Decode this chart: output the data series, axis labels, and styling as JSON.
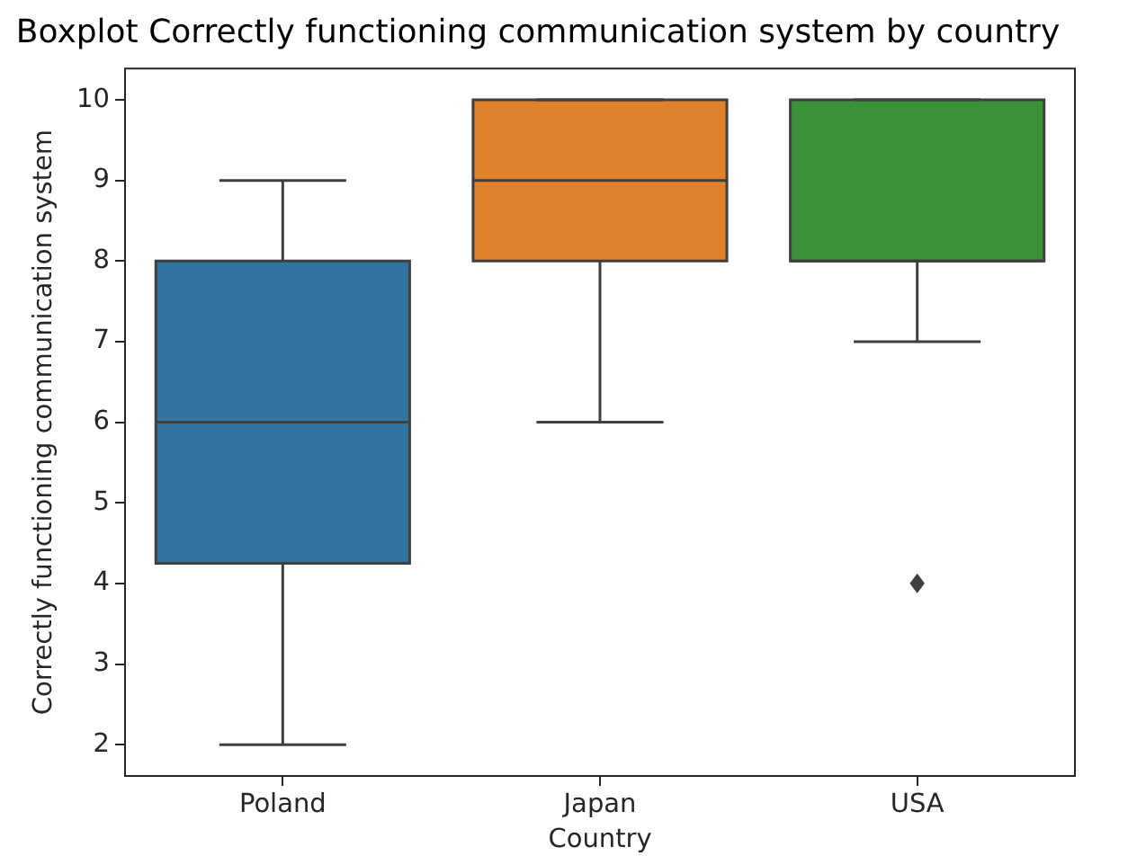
{
  "chart_data": {
    "type": "box",
    "title": "Boxplot Correctly functioning communication system by country",
    "xlabel": "Country",
    "ylabel": "Correctly functioning communication system",
    "categories": [
      "Poland",
      "Japan",
      "USA"
    ],
    "colors": [
      "#3274a1",
      "#e1812c",
      "#3a923a"
    ],
    "boxes": [
      {
        "low": 2,
        "q1": 4.25,
        "median": 6,
        "q3": 8,
        "high": 9
      },
      {
        "low": 6,
        "q1": 8,
        "median": 9,
        "q3": 10,
        "high": 10
      },
      {
        "low": 7,
        "q1": 8,
        "median": 8,
        "q3": 10,
        "high": 10,
        "outliers": [
          4
        ]
      }
    ],
    "marker": "diamond",
    "ylim": [
      1.6,
      10.4
    ],
    "yticks": [
      2,
      3,
      4,
      5,
      6,
      7,
      8,
      9,
      10
    ]
  }
}
